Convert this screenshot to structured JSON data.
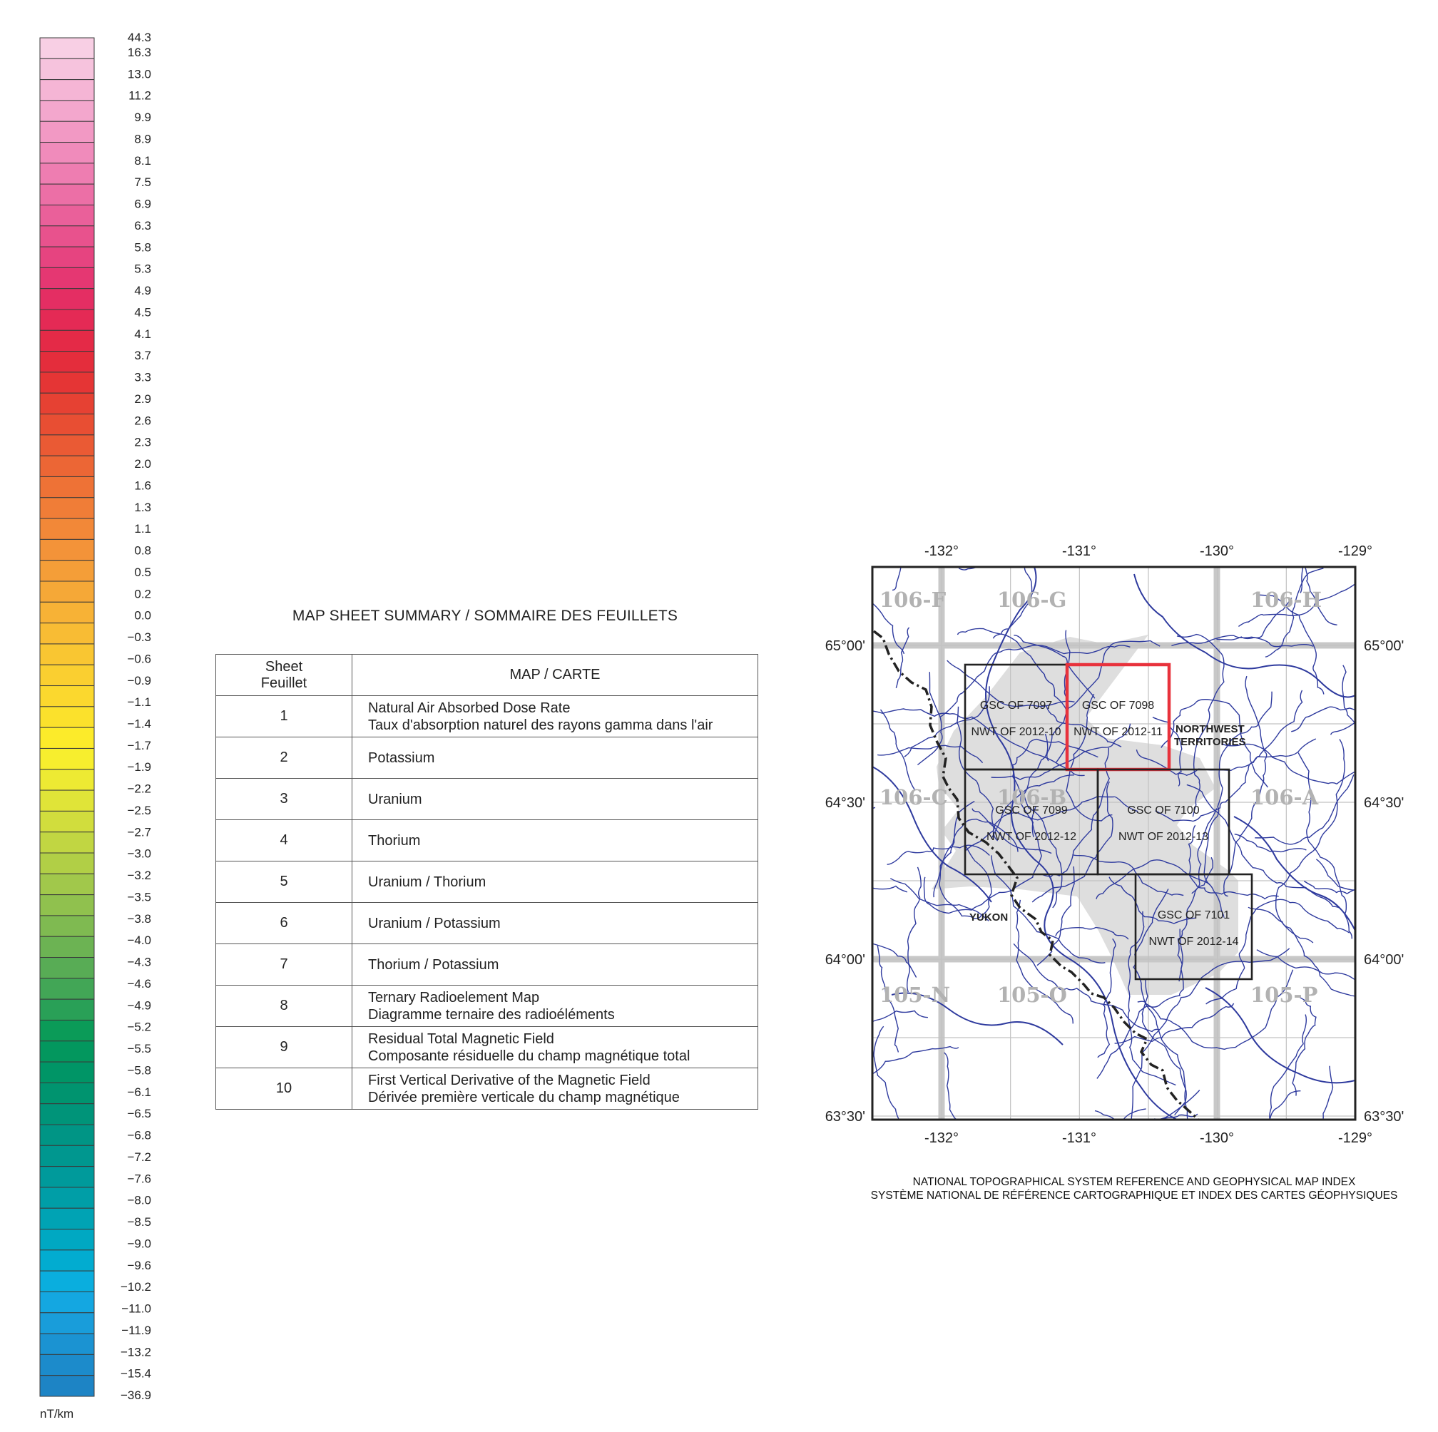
{
  "color_scale": {
    "unit": "nT/km",
    "labels": [
      "44.3",
      "16.3",
      "13.0",
      "11.2",
      "9.9",
      "8.9",
      "8.1",
      "7.5",
      "6.9",
      "6.3",
      "5.8",
      "5.3",
      "4.9",
      "4.5",
      "4.1",
      "3.7",
      "3.3",
      "2.9",
      "2.6",
      "2.3",
      "2.0",
      "1.6",
      "1.3",
      "1.1",
      "0.8",
      "0.5",
      "0.2",
      "0.0",
      "−0.3",
      "−0.6",
      "−0.9",
      "−1.1",
      "−1.4",
      "−1.7",
      "−1.9",
      "−2.2",
      "−2.5",
      "−2.7",
      "−3.0",
      "−3.2",
      "−3.5",
      "−3.8",
      "−4.0",
      "−4.3",
      "−4.6",
      "−4.9",
      "−5.2",
      "−5.5",
      "−5.8",
      "−6.1",
      "−6.5",
      "−6.8",
      "−7.2",
      "−7.6",
      "−8.0",
      "−8.5",
      "−9.0",
      "−9.6",
      "−10.2",
      "−11.0",
      "−11.9",
      "−13.2",
      "−15.4",
      "−36.9"
    ],
    "colors": [
      "#f8cfe4",
      "#f6c3dd",
      "#f5b5d5",
      "#f3a7cd",
      "#f299c4",
      "#f08bbb",
      "#ee7db1",
      "#ec6fa6",
      "#ea609a",
      "#e8528d",
      "#e64480",
      "#e53772",
      "#e42e63",
      "#e42a55",
      "#e42a47",
      "#e42d3c",
      "#e53535",
      "#e64133",
      "#e84e33",
      "#ea5a34",
      "#ec6635",
      "#ee7236",
      "#f07d37",
      "#f28838",
      "#f39339",
      "#f49e38",
      "#f5a837",
      "#f7b236",
      "#f8bc34",
      "#f9c632",
      "#facf30",
      "#fbd82e",
      "#fbe12c",
      "#fceb2a",
      "#f7ee2e",
      "#edea33",
      "#e0e438",
      "#d1dd3d",
      "#c1d642",
      "#b1cf46",
      "#a1c84b",
      "#90c14e",
      "#7fba51",
      "#6cb353",
      "#58ac55",
      "#42a656",
      "#29a057",
      "#0b9b58",
      "#03975e",
      "#009566",
      "#00946f",
      "#009479",
      "#009585",
      "#00978f",
      "#009a9b",
      "#009ea7",
      "#00a3b4",
      "#00a8c2",
      "#02acd0",
      "#0aaede",
      "#14a7e1",
      "#199dda",
      "#1b93d2",
      "#1c8bcb",
      "#1d84c5"
    ]
  },
  "summary": {
    "title": "MAP SHEET SUMMARY / SOMMAIRE DES FEUILLETS",
    "header_sheet_1": "Sheet",
    "header_sheet_2": "Feuillet",
    "header_map": "MAP / CARTE",
    "rows": [
      {
        "sheet": "1",
        "line1": "Natural Air Absorbed Dose Rate",
        "line2": "Taux d'absorption naturel des rayons gamma dans l'air"
      },
      {
        "sheet": "2",
        "line1": "Potassium",
        "line2": ""
      },
      {
        "sheet": "3",
        "line1": "Uranium",
        "line2": ""
      },
      {
        "sheet": "4",
        "line1": "Thorium",
        "line2": ""
      },
      {
        "sheet": "5",
        "line1": "Uranium / Thorium",
        "line2": ""
      },
      {
        "sheet": "6",
        "line1": "Uranium / Potassium",
        "line2": ""
      },
      {
        "sheet": "7",
        "line1": "Thorium / Potassium",
        "line2": ""
      },
      {
        "sheet": "8",
        "line1": "Ternary Radioelement Map",
        "line2": "Diagramme ternaire des radioéléments"
      },
      {
        "sheet": "9",
        "line1": "Residual Total Magnetic Field",
        "line2": "Composante résiduelle du champ magnétique total"
      },
      {
        "sheet": "10",
        "line1": "First Vertical Derivative of the Magnetic Field",
        "line2": "Dérivée première verticale du champ magnétique"
      }
    ]
  },
  "index_map": {
    "lon_labels": [
      "-132°",
      "-131°",
      "-130°",
      "-129°"
    ],
    "lat_labels": [
      "65°00'",
      "64°30'",
      "64°00'",
      "63°30'"
    ],
    "nts_tiles": [
      "106-F",
      "106-G",
      "106-H",
      "106-C",
      "106-B",
      "106-A",
      "105-N",
      "105-O",
      "105-P"
    ],
    "sheets": [
      {
        "gsc": "GSC OF 7097",
        "nwt": "NWT OF 2012-10",
        "highlight": false
      },
      {
        "gsc": "GSC OF 7098",
        "nwt": "NWT OF 2012-11",
        "highlight": true
      },
      {
        "gsc": "GSC OF 7099",
        "nwt": "NWT OF 2012-12",
        "highlight": false
      },
      {
        "gsc": "GSC OF 7100",
        "nwt": "NWT OF 2012-13",
        "highlight": false
      },
      {
        "gsc": "GSC OF 7101",
        "nwt": "NWT OF 2012-14",
        "highlight": false
      }
    ],
    "region_nwt_1": "NORTHWEST",
    "region_nwt_2": "TERRITORIES",
    "region_yukon": "YUKON",
    "highlight_color": "#e8323c",
    "river_color": "#2e3a9e"
  },
  "caption": {
    "line1": "NATIONAL TOPOGRAPHICAL SYSTEM REFERENCE AND GEOPHYSICAL MAP INDEX",
    "line2": "SYSTÈME NATIONAL DE RÉFÉRENCE CARTOGRAPHIQUE ET INDEX DES CARTES GÉOPHYSIQUES"
  }
}
